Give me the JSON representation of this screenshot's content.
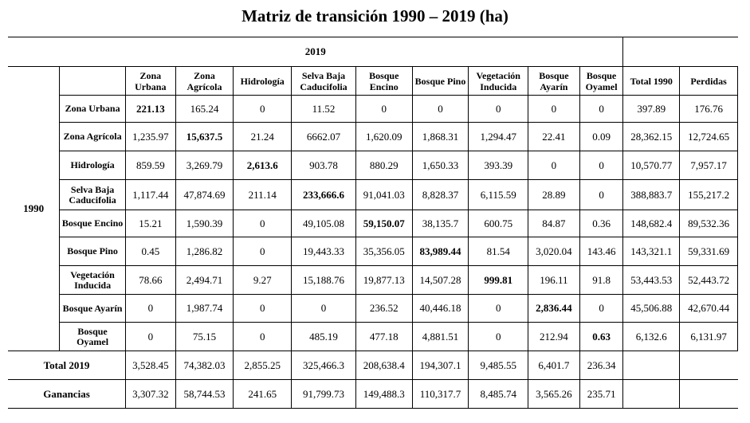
{
  "title": "Matriz de transición 1990 – 2019 (ha)",
  "col_axis_label": "2019",
  "row_axis_label": "1990",
  "columns": [
    "Zona Urbana",
    "Zona Agrícola",
    "Hidrología",
    "Selva Baja Caducifolia",
    "Bosque Encino",
    "Bosque Pino",
    "Vegetación Inducida",
    "Bosque Ayarín",
    "Bosque Oyamel",
    "Total 1990",
    "Perdidas"
  ],
  "rows": [
    {
      "label": "Zona Urbana",
      "values": [
        "221.13",
        "165.24",
        "0",
        "11.52",
        "0",
        "0",
        "0",
        "0",
        "0",
        "397.89",
        "176.76"
      ]
    },
    {
      "label": "Zona Agrícola",
      "values": [
        "1,235.97",
        "15,637.5",
        "21.24",
        "6662.07",
        "1,620.09",
        "1,868.31",
        "1,294.47",
        "22.41",
        "0.09",
        "28,362.15",
        "12,724.65"
      ]
    },
    {
      "label": "Hidrología",
      "values": [
        "859.59",
        "3,269.79",
        "2,613.6",
        "903.78",
        "880.29",
        "1,650.33",
        "393.39",
        "0",
        "0",
        "10,570.77",
        "7,957.17"
      ]
    },
    {
      "label": "Selva Baja Caducifolia",
      "values": [
        "1,117.44",
        "47,874.69",
        "211.14",
        "233,666.6",
        "91,041.03",
        "8,828.37",
        "6,115.59",
        "28.89",
        "0",
        "388,883.7",
        "155,217.2"
      ]
    },
    {
      "label": "Bosque Encino",
      "values": [
        "15.21",
        "1,590.39",
        "0",
        "49,105.08",
        "59,150.07",
        "38,135.7",
        "600.75",
        "84.87",
        "0.36",
        "148,682.4",
        "89,532.36"
      ]
    },
    {
      "label": "Bosque Pino",
      "values": [
        "0.45",
        "1,286.82",
        "0",
        "19,443.33",
        "35,356.05",
        "83,989.44",
        "81.54",
        "3,020.04",
        "143.46",
        "143,321.1",
        "59,331.69"
      ]
    },
    {
      "label": "Vegetación Inducida",
      "values": [
        "78.66",
        "2,494.71",
        "9.27",
        "15,188.76",
        "19,877.13",
        "14,507.28",
        "999.81",
        "196.11",
        "91.8",
        "53,443.53",
        "52,443.72"
      ]
    },
    {
      "label": "Bosque Ayarín",
      "values": [
        "0",
        "1,987.74",
        "0",
        "0",
        "236.52",
        "40,446.18",
        "0",
        "2,836.44",
        "0",
        "45,506.88",
        "42,670.44"
      ]
    },
    {
      "label": "Bosque Oyamel",
      "values": [
        "0",
        "75.15",
        "0",
        "485.19",
        "477.18",
        "4,881.51",
        "0",
        "212.94",
        "0.63",
        "6,132.6",
        "6,131.97"
      ]
    }
  ],
  "total_row": {
    "label": "Total 2019",
    "values": [
      "3,528.45",
      "74,382.03",
      "2,855.25",
      "325,466.3",
      "208,638.4",
      "194,307.1",
      "9,485.55",
      "6,401.7",
      "236.34"
    ]
  },
  "gains_row": {
    "label": "Ganancias",
    "values": [
      "3,307.32",
      "58,744.53",
      "241.65",
      "91,799.73",
      "149,488.3",
      "110,317.7",
      "8,485.74",
      "3,565.26",
      "235.71"
    ]
  }
}
